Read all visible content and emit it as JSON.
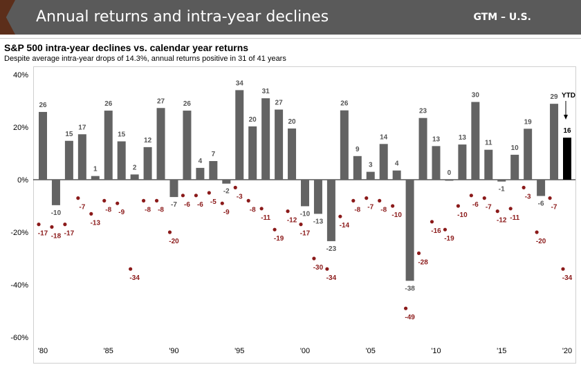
{
  "header": {
    "title": "Annual returns and intra-year declines",
    "tag": "GTM – U.S."
  },
  "colors": {
    "bar": "#636363",
    "bar_ytd": "#000000",
    "dot": "#8b1a1a",
    "return_label": "#555555",
    "decline_label": "#8b1a1a"
  },
  "chart_data": {
    "type": "bar",
    "title": "S&P 500 intra-year declines vs. calendar year returns",
    "subtitle": "Despite average intra-year drops of 14.3%, annual returns positive in 31 of 41 years",
    "ylim": [
      -60,
      40
    ],
    "yticks": [
      40,
      20,
      0,
      -20,
      -40,
      -60
    ],
    "ytick_labels": [
      "40%",
      "20%",
      "0%",
      "-20%",
      "-40%",
      "-60%"
    ],
    "years": [
      1980,
      1981,
      1982,
      1983,
      1984,
      1985,
      1986,
      1987,
      1988,
      1989,
      1990,
      1991,
      1992,
      1993,
      1994,
      1995,
      1996,
      1997,
      1998,
      1999,
      2000,
      2001,
      2002,
      2003,
      2004,
      2005,
      2006,
      2007,
      2008,
      2009,
      2010,
      2011,
      2012,
      2013,
      2014,
      2015,
      2016,
      2017,
      2018,
      2019,
      2020
    ],
    "xtick_years": [
      1980,
      1985,
      1990,
      1995,
      2000,
      2005,
      2010,
      2015,
      2020
    ],
    "xtick_labels": [
      "'80",
      "'85",
      "'90",
      "'95",
      "'00",
      "'05",
      "'10",
      "'15",
      "'20"
    ],
    "series": [
      {
        "name": "Calendar year returns",
        "values": [
          25.8,
          -9.7,
          14.8,
          17.3,
          1.4,
          26.3,
          14.6,
          2,
          12.4,
          27.3,
          -6.6,
          26.3,
          4.5,
          7.1,
          -1.5,
          34.1,
          20.3,
          31,
          26.7,
          19.5,
          -10.1,
          -13,
          -23.4,
          26.4,
          9,
          3,
          13.6,
          3.5,
          -38.5,
          23.5,
          12.8,
          0,
          13.4,
          29.6,
          11.4,
          -0.7,
          9.5,
          19.4,
          -6.2,
          28.9,
          16
        ],
        "labels": [
          "26",
          "-10",
          "15",
          "17",
          "1",
          "26",
          "15",
          "2",
          "12",
          "27",
          "-7",
          "26",
          "4",
          "7",
          "-2",
          "34",
          "20",
          "31",
          "27",
          "20",
          "-10",
          "-13",
          "-23",
          "26",
          "9",
          "3",
          "14",
          "4",
          "-38",
          "23",
          "13",
          "0",
          "13",
          "30",
          "11",
          "-1",
          "10",
          "19",
          "-6",
          "29",
          "16"
        ]
      },
      {
        "name": "Intra-year declines",
        "values": [
          -17,
          -18,
          -17,
          -7,
          -13,
          -8,
          -9,
          -34,
          -8,
          -8,
          -20,
          -6,
          -6,
          -5,
          -9,
          -3,
          -8,
          -11,
          -19,
          -12,
          -17,
          -30,
          -34,
          -14,
          -8,
          -7,
          -8,
          -10,
          -49,
          -28,
          -16,
          -19,
          -10,
          -6,
          -7,
          -12,
          -11,
          -3,
          -20,
          -7,
          -34
        ],
        "labels": [
          "-17",
          "-18",
          "-17",
          "-7",
          "-13",
          "-8",
          "-9",
          "-34",
          "-8",
          "-8",
          "-20",
          "-6",
          "-6",
          "-5",
          "-9",
          "-3",
          "-8",
          "-11",
          "-19",
          "-12",
          "-17",
          "-30",
          "-34",
          "-14",
          "-8",
          "-7",
          "-8",
          "-10",
          "-49",
          "-28",
          "-16",
          "-19",
          "-10",
          "-6",
          "-7",
          "-12",
          "-11",
          "-3",
          "-20",
          "-7",
          "-34"
        ]
      }
    ],
    "annotation": "YTD"
  }
}
